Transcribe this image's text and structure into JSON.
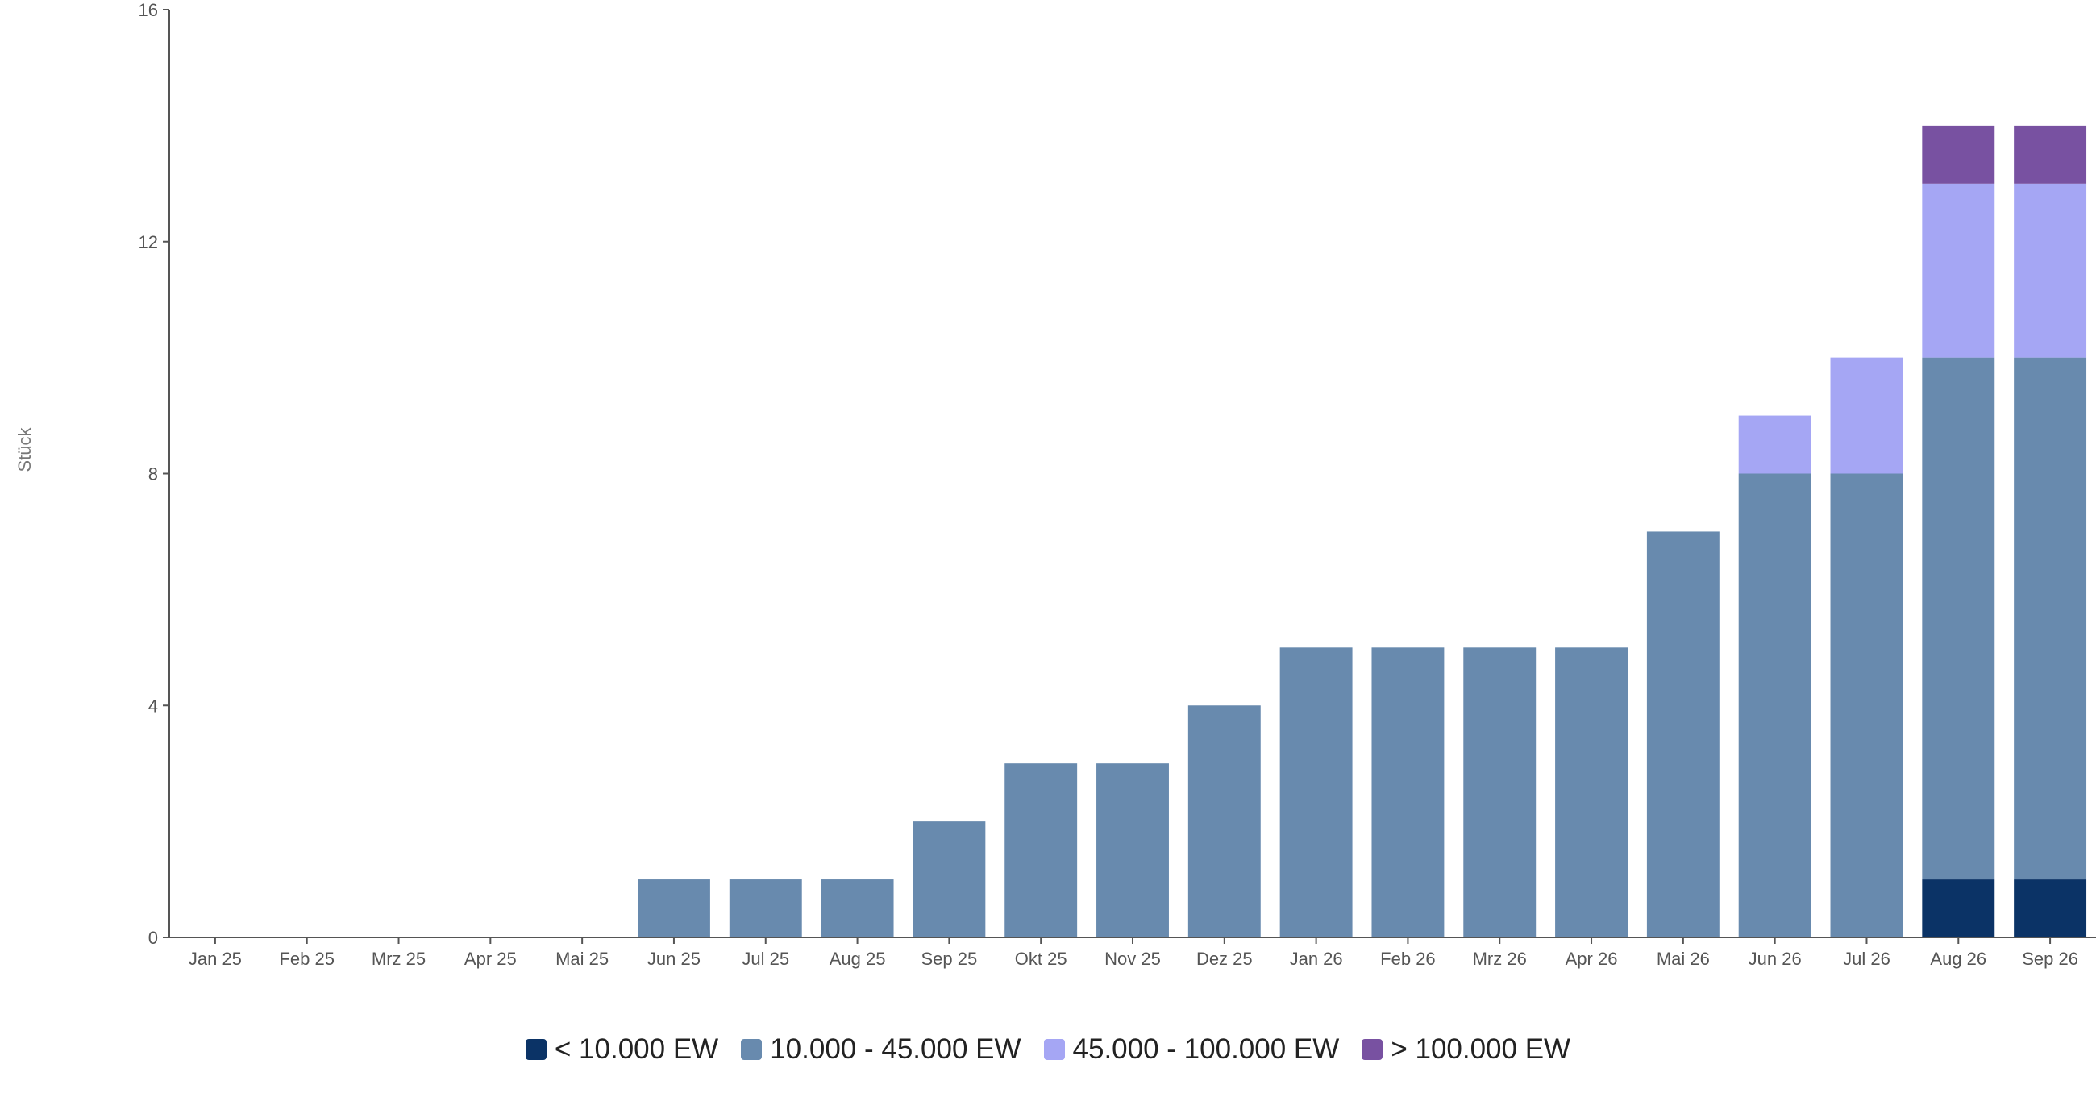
{
  "chart_data": {
    "type": "bar",
    "stacked": true,
    "title": "",
    "xlabel": "",
    "ylabel": "Stück",
    "ylim": [
      0,
      16
    ],
    "yticks": [
      0,
      4,
      8,
      12,
      16
    ],
    "grid": false,
    "legend_position": "bottom",
    "categories": [
      "Jan 25",
      "Feb 25",
      "Mrz 25",
      "Apr 25",
      "Mai 25",
      "Jun 25",
      "Jul 25",
      "Aug 25",
      "Sep 25",
      "Okt 25",
      "Nov 25",
      "Dez 25",
      "Jan 26",
      "Feb 26",
      "Mrz 26",
      "Apr 26",
      "Mai 26",
      "Jun 26",
      "Jul 26",
      "Aug 26",
      "Sep 26"
    ],
    "series": [
      {
        "name": "< 10.000 EW",
        "color": "#0b3366",
        "values": [
          0,
          0,
          0,
          0,
          0,
          0,
          0,
          0,
          0,
          0,
          0,
          0,
          0,
          0,
          0,
          0,
          0,
          0,
          0,
          1,
          1
        ]
      },
      {
        "name": "10.000 - 45.000 EW",
        "color": "#688aae",
        "values": [
          0,
          0,
          0,
          0,
          0,
          1,
          1,
          1,
          2,
          3,
          3,
          4,
          5,
          5,
          5,
          5,
          7,
          8,
          8,
          9,
          9
        ]
      },
      {
        "name": "45.000 - 100.000 EW",
        "color": "#a5a6f4",
        "values": [
          0,
          0,
          0,
          0,
          0,
          0,
          0,
          0,
          0,
          0,
          0,
          0,
          0,
          0,
          0,
          0,
          0,
          1,
          2,
          3,
          3
        ]
      },
      {
        "name": "> 100.000 EW",
        "color": "#7851a1",
        "values": [
          0,
          0,
          0,
          0,
          0,
          0,
          0,
          0,
          0,
          0,
          0,
          0,
          0,
          0,
          0,
          0,
          0,
          0,
          0,
          1,
          1
        ]
      }
    ]
  }
}
